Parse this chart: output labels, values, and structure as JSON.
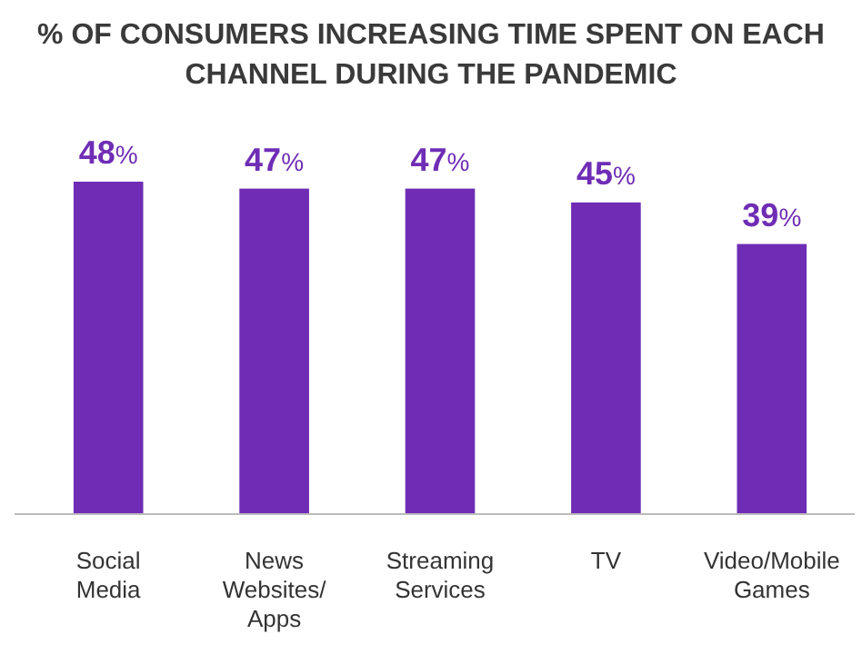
{
  "chart_data": {
    "type": "bar",
    "title": "% OF CONSUMERS INCREASING TIME SPENT ON EACH CHANNEL DURING THE PANDEMIC",
    "categories": [
      "Social Media",
      "News Websites/ Apps",
      "Streaming Services",
      "TV",
      "Video/Mobile Games"
    ],
    "values": [
      48,
      47,
      47,
      45,
      39
    ],
    "value_labels": [
      "48%",
      "47%",
      "47%",
      "45%",
      "39%"
    ],
    "color": "#6f2db5",
    "relative": false
  }
}
